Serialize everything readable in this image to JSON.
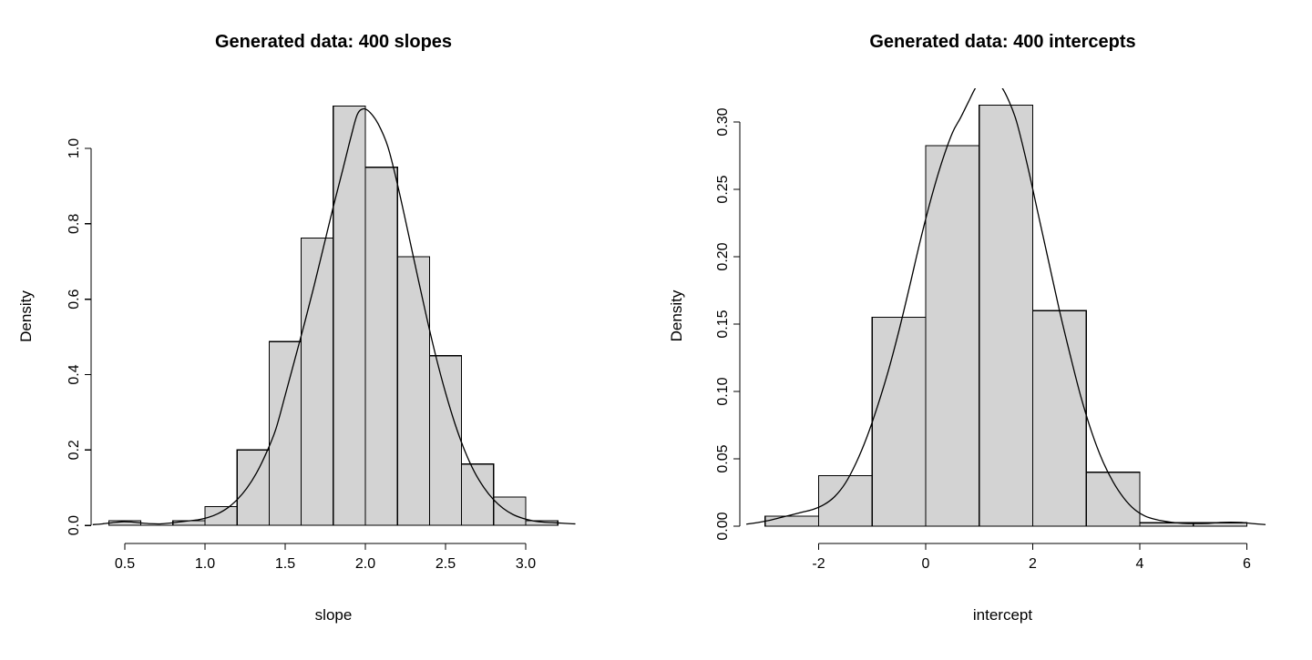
{
  "figure": {
    "background": "#ffffff",
    "bar_fill": "#d3d3d3",
    "bar_stroke": "#000000",
    "curve_color": "#000000",
    "axis_color": "#000000",
    "text_color": "#000000"
  },
  "chart_data": [
    {
      "type": "bar",
      "subtype": "histogram-with-density-curve",
      "title": "Generated data: 400 slopes",
      "xlabel": "slope",
      "ylabel": "Density",
      "sample_size": 400,
      "bin_width": 0.2,
      "bin_edges": [
        0.4,
        0.6,
        0.8,
        1.0,
        1.2,
        1.4,
        1.6,
        1.8,
        2.0,
        2.2,
        2.4,
        2.6,
        2.8,
        3.0,
        3.2
      ],
      "densities": [
        0.0125,
        0,
        0.0125,
        0.05,
        0.2,
        0.4875,
        0.7625,
        1.1125,
        0.95,
        0.7125,
        0.45,
        0.1625,
        0.075,
        0.0125
      ],
      "counts": [
        1,
        0,
        1,
        4,
        16,
        39,
        61,
        89,
        76,
        57,
        36,
        13,
        6,
        1
      ],
      "x_ticks": [
        0.5,
        1.0,
        1.5,
        2.0,
        2.5,
        3.0
      ],
      "x_tick_labels": [
        "0.5",
        "1.0",
        "1.5",
        "2.0",
        "2.5",
        "3.0"
      ],
      "y_ticks": [
        0.0,
        0.2,
        0.4,
        0.6,
        0.8,
        1.0
      ],
      "y_tick_labels": [
        "0.0",
        "0.2",
        "0.4",
        "0.6",
        "0.8",
        "1.0"
      ],
      "xlim": [
        0.2898,
        3.3125
      ],
      "ylim": [
        -0.048,
        1.157
      ],
      "grid": false,
      "density_curve": [
        [
          0.3,
          0.002
        ],
        [
          0.36,
          0.004
        ],
        [
          0.42,
          0.007
        ],
        [
          0.48,
          0.0095
        ],
        [
          0.54,
          0.009
        ],
        [
          0.6,
          0.0065
        ],
        [
          0.66,
          0.0045
        ],
        [
          0.72,
          0.004
        ],
        [
          0.78,
          0.006
        ],
        [
          0.84,
          0.009
        ],
        [
          0.9,
          0.012
        ],
        [
          0.96,
          0.015
        ],
        [
          1.02,
          0.021
        ],
        [
          1.08,
          0.031
        ],
        [
          1.14,
          0.046
        ],
        [
          1.2,
          0.068
        ],
        [
          1.26,
          0.098
        ],
        [
          1.32,
          0.138
        ],
        [
          1.38,
          0.19
        ],
        [
          1.44,
          0.253
        ],
        [
          1.5,
          0.345
        ],
        [
          1.56,
          0.44
        ],
        [
          1.62,
          0.535
        ],
        [
          1.68,
          0.635
        ],
        [
          1.74,
          0.74
        ],
        [
          1.8,
          0.845
        ],
        [
          1.86,
          0.945
        ],
        [
          1.91,
          1.03
        ],
        [
          1.95,
          1.09
        ],
        [
          1.99,
          1.105
        ],
        [
          2.03,
          1.095
        ],
        [
          2.08,
          1.065
        ],
        [
          2.14,
          1.005
        ],
        [
          2.2,
          0.905
        ],
        [
          2.26,
          0.79
        ],
        [
          2.32,
          0.672
        ],
        [
          2.38,
          0.556
        ],
        [
          2.44,
          0.448
        ],
        [
          2.5,
          0.352
        ],
        [
          2.56,
          0.268
        ],
        [
          2.62,
          0.198
        ],
        [
          2.68,
          0.142
        ],
        [
          2.74,
          0.1
        ],
        [
          2.8,
          0.068
        ],
        [
          2.86,
          0.045
        ],
        [
          2.92,
          0.029
        ],
        [
          2.98,
          0.019
        ],
        [
          3.04,
          0.0125
        ],
        [
          3.1,
          0.009
        ],
        [
          3.16,
          0.0075
        ],
        [
          3.22,
          0.006
        ],
        [
          3.28,
          0.0045
        ],
        [
          3.31,
          0.004
        ]
      ]
    },
    {
      "type": "bar",
      "subtype": "histogram-with-density-curve",
      "title": "Generated data: 400 intercepts",
      "xlabel": "intercept",
      "ylabel": "Density",
      "sample_size": 400,
      "bin_width": 1,
      "bin_edges": [
        -3,
        -2,
        -1,
        0,
        1,
        2,
        3,
        4,
        5,
        6
      ],
      "densities": [
        0.0075,
        0.0375,
        0.155,
        0.2825,
        0.3125,
        0.16,
        0.04,
        0.0025,
        0.0025
      ],
      "counts": [
        3,
        15,
        62,
        113,
        125,
        64,
        16,
        1,
        1
      ],
      "x_ticks": [
        -2,
        0,
        2,
        4,
        6
      ],
      "x_tick_labels": [
        "-2",
        "0",
        "2",
        "4",
        "6"
      ],
      "y_ticks": [
        0.0,
        0.05,
        0.1,
        0.15,
        0.2,
        0.25,
        0.3
      ],
      "y_tick_labels": [
        "0.00",
        "0.05",
        "0.10",
        "0.15",
        "0.20",
        "0.25",
        "0.30"
      ],
      "xlim": [
        -3.472,
        6.349
      ],
      "ylim": [
        -0.0128,
        0.325
      ],
      "grid": false,
      "density_curve": [
        [
          -3.35,
          0.0015
        ],
        [
          -3.1,
          0.003
        ],
        [
          -2.9,
          0.0045
        ],
        [
          -2.7,
          0.0065
        ],
        [
          -2.5,
          0.0085
        ],
        [
          -2.3,
          0.0105
        ],
        [
          -2.1,
          0.0125
        ],
        [
          -1.9,
          0.016
        ],
        [
          -1.7,
          0.022
        ],
        [
          -1.5,
          0.032
        ],
        [
          -1.3,
          0.047
        ],
        [
          -1.1,
          0.066
        ],
        [
          -0.9,
          0.089
        ],
        [
          -0.7,
          0.115
        ],
        [
          -0.5,
          0.145
        ],
        [
          -0.3,
          0.178
        ],
        [
          -0.1,
          0.212
        ],
        [
          0.1,
          0.243
        ],
        [
          0.3,
          0.27
        ],
        [
          0.5,
          0.292
        ],
        [
          0.65,
          0.303
        ],
        [
          0.8,
          0.315
        ],
        [
          0.95,
          0.3265
        ],
        [
          1.1,
          0.332
        ],
        [
          1.25,
          0.332
        ],
        [
          1.4,
          0.327
        ],
        [
          1.55,
          0.316
        ],
        [
          1.7,
          0.3
        ],
        [
          1.9,
          0.268
        ],
        [
          2.1,
          0.232
        ],
        [
          2.3,
          0.196
        ],
        [
          2.5,
          0.16
        ],
        [
          2.7,
          0.127
        ],
        [
          2.9,
          0.096
        ],
        [
          3.1,
          0.07
        ],
        [
          3.3,
          0.049
        ],
        [
          3.5,
          0.033
        ],
        [
          3.7,
          0.021
        ],
        [
          3.9,
          0.0125
        ],
        [
          4.1,
          0.0075
        ],
        [
          4.3,
          0.005
        ],
        [
          4.5,
          0.0035
        ],
        [
          4.7,
          0.0025
        ],
        [
          4.9,
          0.002
        ],
        [
          5.1,
          0.002
        ],
        [
          5.3,
          0.0022
        ],
        [
          5.5,
          0.0028
        ],
        [
          5.7,
          0.003
        ],
        [
          5.9,
          0.0028
        ],
        [
          6.1,
          0.002
        ],
        [
          6.35,
          0.0012
        ]
      ]
    }
  ]
}
